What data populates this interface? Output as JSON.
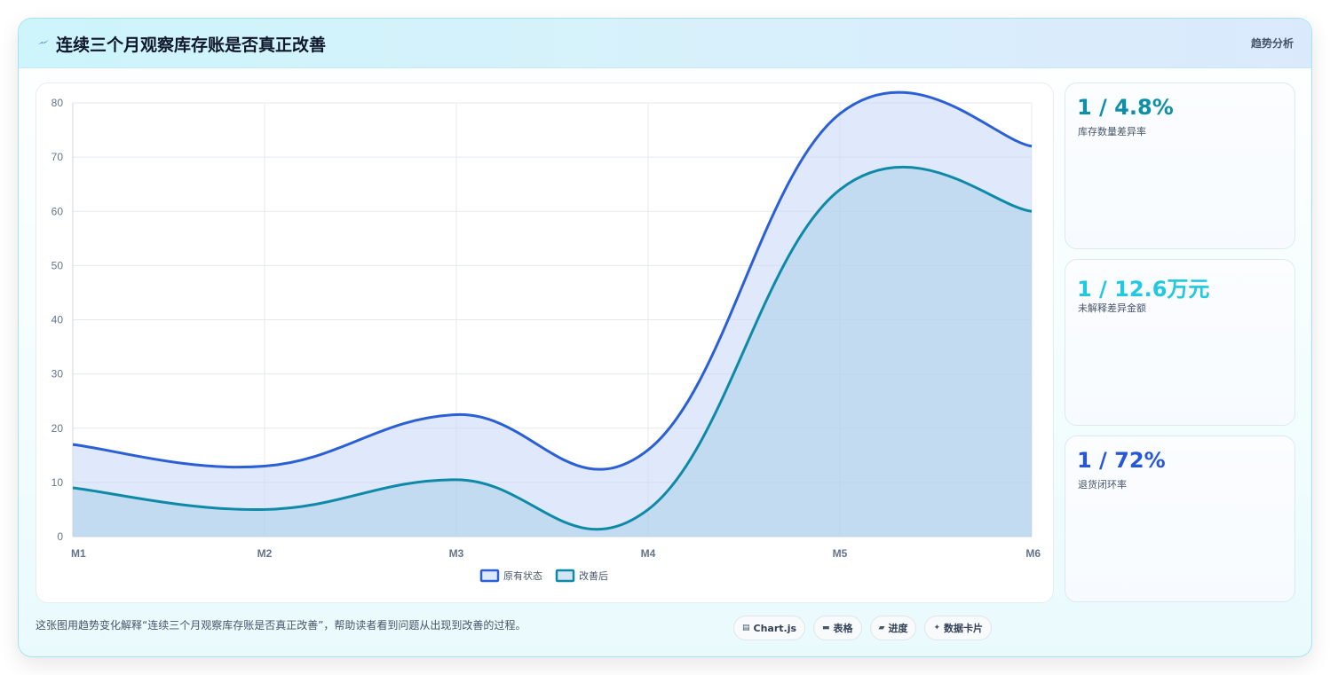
{
  "header": {
    "title": "连续三个月观察库存账是否真正改善",
    "tag": "趋势分析",
    "icon": "lightning-icon"
  },
  "stats": [
    {
      "value": "1 / 4.8%",
      "label": "库存数量差异率",
      "color": "#0e8fa8"
    },
    {
      "value": "1 / 12.6万元",
      "label": "未解释差异金额",
      "color": "#22c8e0"
    },
    {
      "value": "1 / 72%",
      "label": "退货闭环率",
      "color": "#2757d6"
    }
  ],
  "caption": "这张图用趋势变化解释“连续三个月观察库存账是否真正改善”，帮助读者看到问题从出现到改善的过程。",
  "chips": [
    {
      "icon": "chart-icon",
      "glyph": "▤",
      "label": "Chart.js"
    },
    {
      "icon": "table-icon",
      "glyph": "▬",
      "label": "表格"
    },
    {
      "icon": "progress-icon",
      "glyph": "▰",
      "label": "进度"
    },
    {
      "icon": "card-icon",
      "glyph": "✦",
      "label": "数据卡片"
    }
  ],
  "chart_data": {
    "type": "area",
    "categories": [
      "M1",
      "M2",
      "M3",
      "M4",
      "M5",
      "M6"
    ],
    "ylim": [
      0,
      80
    ],
    "yticks": [
      0,
      10,
      20,
      30,
      40,
      50,
      60,
      70,
      80
    ],
    "grid": true,
    "legend_position": "bottom",
    "series": [
      {
        "name": "原有状态",
        "values": [
          17,
          13,
          22.5,
          16,
          78,
          72
        ],
        "color": "#2b5fd6",
        "fill": "rgba(199, 214, 248, 0.55)"
      },
      {
        "name": "改善后",
        "values": [
          9,
          5,
          10.5,
          5,
          64,
          60
        ],
        "color": "#0e8aa8",
        "fill": "rgba(171, 208, 232, 0.55)"
      }
    ]
  }
}
